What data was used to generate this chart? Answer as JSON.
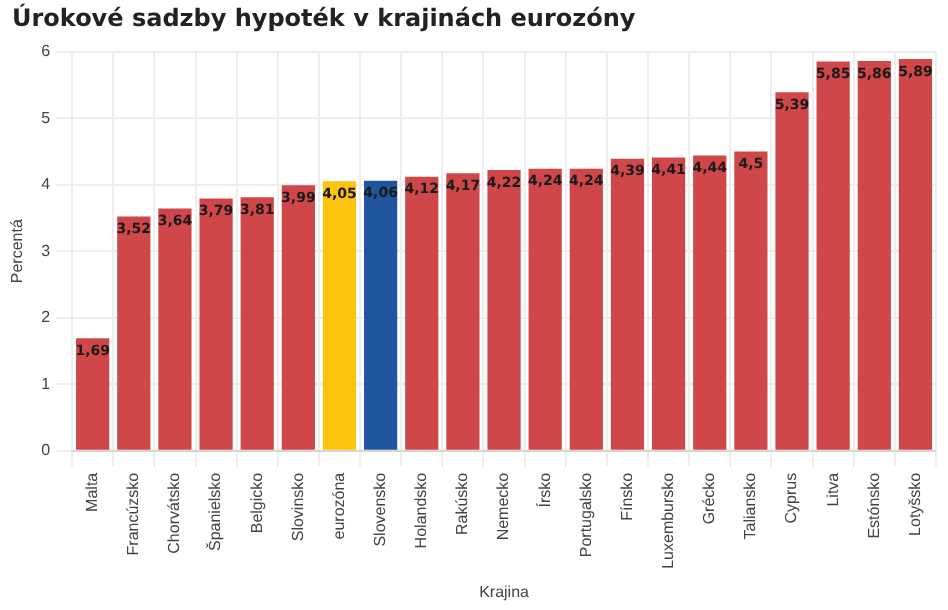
{
  "chart_data": {
    "type": "bar",
    "title": "Úrokové sadzby hypoték v krajinách eurozóny",
    "xlabel": "Krajina",
    "ylabel": "Percentá",
    "categories": [
      "Malta",
      "Francúzsko",
      "Chorvátsko",
      "Španielsko",
      "Belgicko",
      "Slovinsko",
      "eurozóna",
      "Slovensko",
      "Holandsko",
      "Rakúsko",
      "Nemecko",
      "Írsko",
      "Portugalsko",
      "Fínsko",
      "Luxembursko",
      "Grécko",
      "Taliansko",
      "Cyprus",
      "Litva",
      "Estónsko",
      "Lotyšsko"
    ],
    "values": [
      1.69,
      3.52,
      3.64,
      3.79,
      3.81,
      3.99,
      4.05,
      4.06,
      4.12,
      4.17,
      4.22,
      4.24,
      4.24,
      4.39,
      4.41,
      4.44,
      4.5,
      5.39,
      5.85,
      5.86,
      5.89
    ],
    "value_labels": [
      "1,69",
      "3,52",
      "3,64",
      "3,79",
      "3,81",
      "3,99",
      "4,05",
      "4,06",
      "4,12",
      "4,17",
      "4,22",
      "4,24",
      "4,24",
      "4,39",
      "4,41",
      "4,44",
      "4,5",
      "5,39",
      "5,85",
      "5,86",
      "5,89"
    ],
    "colors": [
      "#d0474a",
      "#d0474a",
      "#d0474a",
      "#d0474a",
      "#d0474a",
      "#d0474a",
      "#fcc30f",
      "#1f549e",
      "#d0474a",
      "#d0474a",
      "#d0474a",
      "#d0474a",
      "#d0474a",
      "#d0474a",
      "#d0474a",
      "#d0474a",
      "#d0474a",
      "#d0474a",
      "#d0474a",
      "#d0474a",
      "#d0474a"
    ],
    "ylim": [
      0,
      6
    ],
    "yticks": [
      0,
      1,
      2,
      3,
      4,
      5,
      6
    ],
    "grid": true,
    "legend": false
  }
}
